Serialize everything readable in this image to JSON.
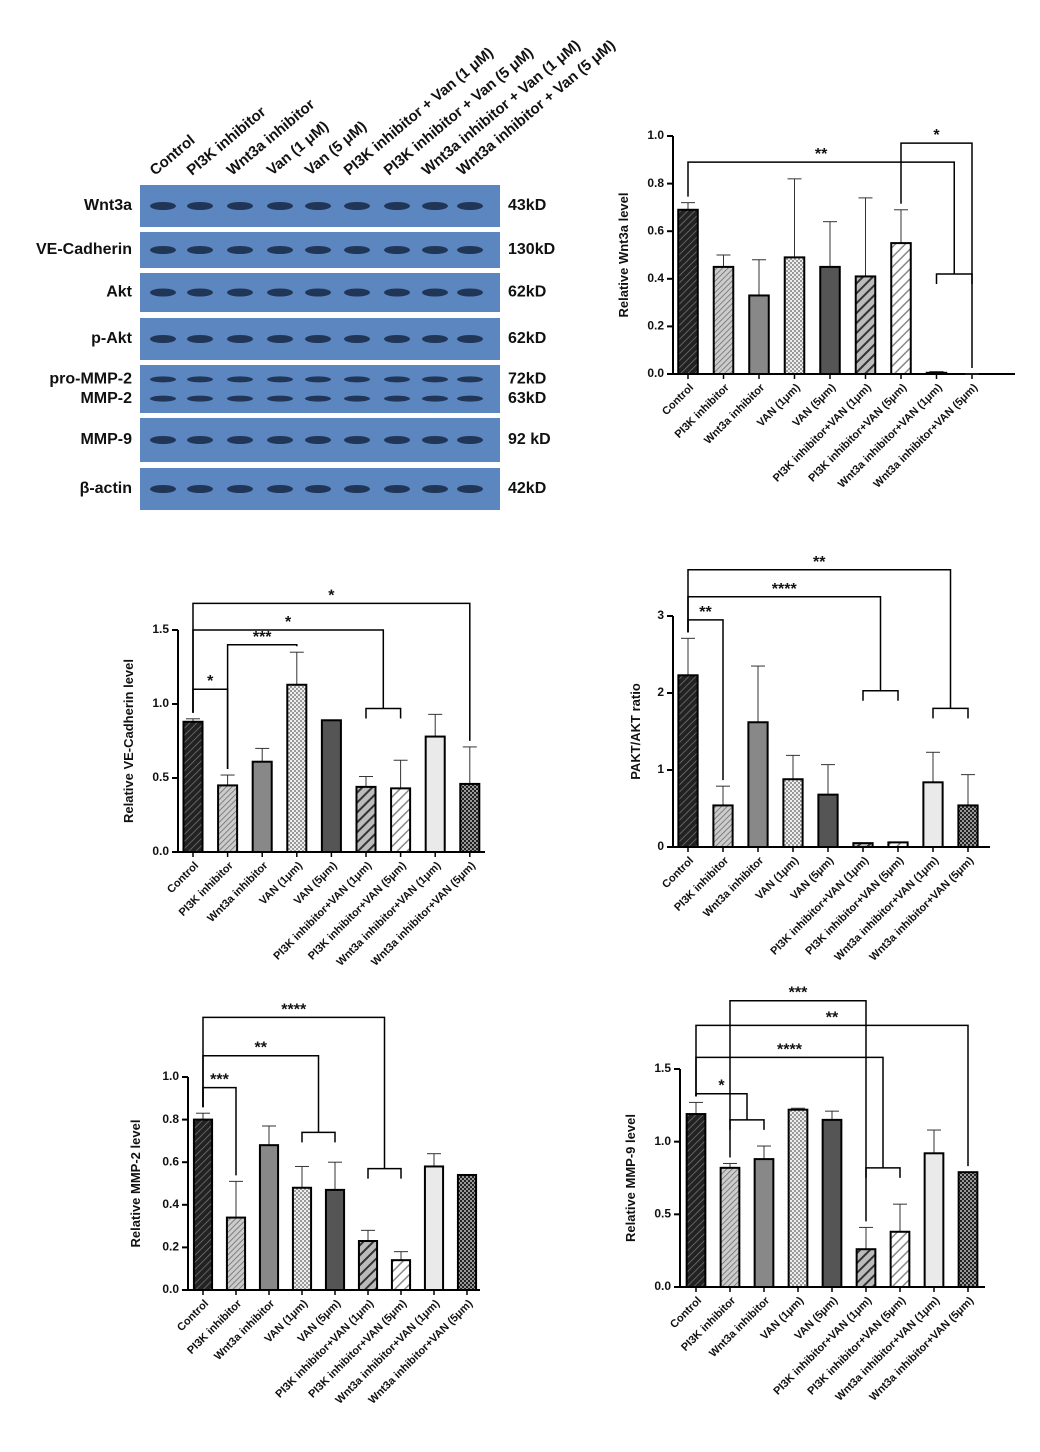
{
  "blot": {
    "lanes": [
      "Control",
      "PI3K inhibitor",
      "Wnt3a inhibitor",
      "Van (1 μM)",
      "Van (5 μM)",
      "PI3K inhibitor + Van (1 μM)",
      "PI3K inhibitor + Van (5 μM)",
      "Wnt3a inhibitor + Van (1 μM)",
      "Wnt3a inhibitor + Van (5 μM)"
    ],
    "rows": [
      {
        "labels": [
          "Wnt3a"
        ],
        "sizes": [
          "43kD"
        ]
      },
      {
        "labels": [
          "VE-Cadherin"
        ],
        "sizes": [
          "130kD"
        ]
      },
      {
        "labels": [
          "Akt"
        ],
        "sizes": [
          "62kD"
        ]
      },
      {
        "labels": [
          "p-Akt"
        ],
        "sizes": [
          "62kD"
        ]
      },
      {
        "labels": [
          "pro-MMP-2",
          "MMP-2"
        ],
        "sizes": [
          "72kD",
          "63kD"
        ]
      },
      {
        "labels": [
          "MMP-9"
        ],
        "sizes": [
          "92 kD"
        ]
      },
      {
        "labels": [
          "β-actin"
        ],
        "sizes": [
          "42kD"
        ]
      }
    ]
  },
  "chart_data": [
    {
      "type": "bar",
      "y_label": "Relative Wnt3a level",
      "categories": [
        "Control",
        "PI3K inhibitor",
        "Wnt3a inhibitor",
        "VAN (1μm)",
        "VAN (5μm)",
        "PI3K inhibitor+VAN (1μm)",
        "PI3K inhibitor+VAN (5μm)",
        "Wnt3a inhibitor+VAN (1μm)",
        "Wnt3a inhibitor+VAN (5μm)"
      ],
      "values": [
        0.69,
        0.45,
        0.33,
        0.49,
        0.45,
        0.41,
        0.55,
        0.005,
        0
      ],
      "errors": [
        0.03,
        0.05,
        0.15,
        0.33,
        0.19,
        0.33,
        0.14,
        0.005,
        0
      ],
      "ylim": [
        0,
        1
      ],
      "yticks": [
        {
          "value": 0,
          "label": "0.0"
        },
        0.2,
        0.4,
        0.6,
        0.8,
        {
          "value": 1,
          "label": "1.0"
        }
      ],
      "annotations": [
        "**",
        "*"
      ]
    },
    {
      "type": "bar",
      "y_label": "Relative VE-Cadherin level",
      "categories": [
        "Control",
        "PI3K inhibitor",
        "Wnt3a inhibitor",
        "VAN (1μm)",
        "VAN (5μm)",
        "PI3K inhibitor+VAN (1μm)",
        "PI3K inhibitor+VAN (5μm)",
        "Wnt3a inhibitor+VAN (1μm)",
        "Wnt3a inhibitor+VAN (5μm)"
      ],
      "values": [
        0.88,
        0.45,
        0.61,
        1.13,
        0.89,
        0.44,
        0.43,
        0.78,
        0.46
      ],
      "errors": [
        0.02,
        0.07,
        0.09,
        0.22,
        0,
        0.07,
        0.19,
        0.15,
        0.25
      ],
      "ylim": [
        0,
        1.5
      ],
      "yticks": [
        {
          "value": 0,
          "label": "0.0"
        },
        0.5,
        {
          "value": 1,
          "label": "1.0"
        },
        1.5
      ],
      "annotations": [
        "*",
        "***",
        "*",
        "*"
      ]
    },
    {
      "type": "bar",
      "y_label": "PAKT/AKT ratio",
      "categories": [
        "Control",
        "PI3K inhibitor",
        "Wnt3a inhibitor",
        "VAN (1μm)",
        "VAN (5μm)",
        "PI3K inhibitor+VAN (1μm)",
        "PI3K inhibitor+VAN (5μm)",
        "Wnt3a inhibitor+VAN (1μm)",
        "Wnt3a inhibitor+VAN (5μm)"
      ],
      "values": [
        2.23,
        0.54,
        1.62,
        0.88,
        0.68,
        0.05,
        0.06,
        0.84,
        0.54
      ],
      "errors": [
        0.48,
        0.25,
        0.73,
        0.31,
        0.39,
        0,
        0,
        0.39,
        0.4
      ],
      "ylim": [
        0,
        3
      ],
      "yticks": [
        0,
        1,
        2,
        3
      ],
      "annotations": [
        "**",
        "****",
        "**"
      ]
    },
    {
      "type": "bar",
      "y_label": "Relative MMP-2 level",
      "categories": [
        "Control",
        "PI3K inhibitor",
        "Wnt3a inhibitor",
        "VAN (1μm)",
        "VAN (5μm)",
        "PI3K inhibitor+VAN (1μm)",
        "PI3K inhibitor+VAN (5μm)",
        "Wnt3a inhibitor+VAN (1μm)",
        "Wnt3a inhibitor+VAN (5μm)"
      ],
      "values": [
        0.8,
        0.34,
        0.68,
        0.48,
        0.47,
        0.23,
        0.14,
        0.58,
        0.54
      ],
      "errors": [
        0.03,
        0.17,
        0.09,
        0.1,
        0.13,
        0.05,
        0.04,
        0.06,
        0
      ],
      "ylim": [
        0,
        1
      ],
      "yticks": [
        {
          "value": 0,
          "label": "0.0"
        },
        0.2,
        0.4,
        0.6,
        0.8,
        {
          "value": 1,
          "label": "1.0"
        }
      ],
      "annotations": [
        "***",
        "**",
        "****"
      ]
    },
    {
      "type": "bar",
      "y_label": "Relative MMP-9 level",
      "categories": [
        "Control",
        "PI3K inhibitor",
        "Wnt3a inhibitor",
        "VAN (1μm)",
        "VAN (5μm)",
        "PI3K inhibitor+VAN (1μm)",
        "PI3K inhibitor+VAN (5μm)",
        "Wnt3a inhibitor+VAN (1μm)",
        "Wnt3a inhibitor+VAN (5μm)"
      ],
      "values": [
        1.19,
        0.82,
        0.88,
        1.22,
        1.15,
        0.26,
        0.38,
        0.92,
        0.79
      ],
      "errors": [
        0.08,
        0.03,
        0.09,
        0.01,
        0.06,
        0.15,
        0.19,
        0.16,
        0
      ],
      "ylim": [
        0,
        1.5
      ],
      "yticks": [
        {
          "value": 0,
          "label": "0.0"
        },
        0.5,
        {
          "value": 1,
          "label": "1.0"
        },
        1.5
      ],
      "annotations": [
        "*",
        "****",
        "**",
        "***"
      ]
    }
  ]
}
